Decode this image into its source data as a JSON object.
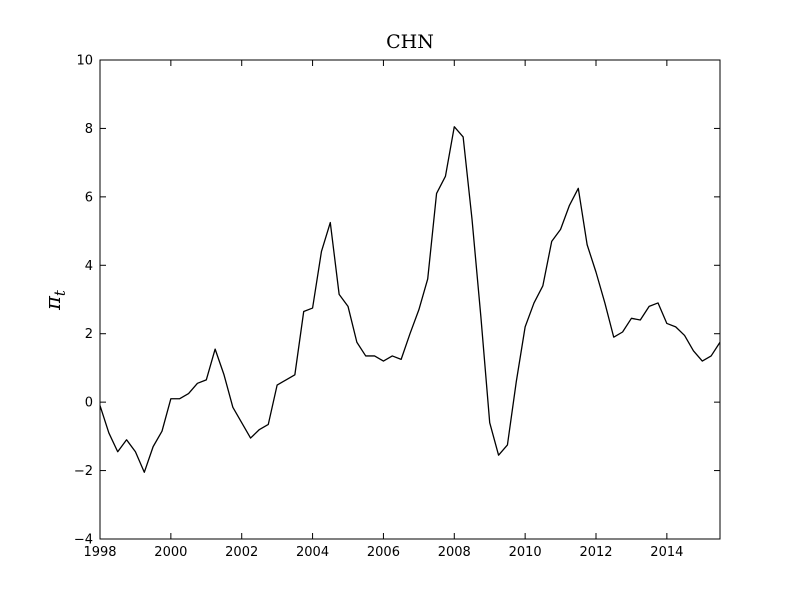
{
  "chart_data": {
    "type": "line",
    "title": "CHN",
    "xlabel": "",
    "ylabel": "π",
    "ylabel_subscript": "t",
    "xlim": [
      1998,
      2015.5
    ],
    "ylim": [
      -4,
      10
    ],
    "xticks": [
      "1998",
      "2000",
      "2002",
      "2004",
      "2006",
      "2008",
      "2010",
      "2012",
      "2014"
    ],
    "yticks": [
      "−4",
      "−2",
      "0",
      "2",
      "4",
      "6",
      "8",
      "10"
    ],
    "grid": false,
    "series_color": "#000000",
    "series": [
      {
        "x": [
          1998.0,
          1998.25,
          1998.5,
          1998.75,
          1999.0,
          1999.25,
          1999.5,
          1999.75,
          2000.0,
          2000.25,
          2000.5,
          2000.75,
          2001.0,
          2001.25,
          2001.5,
          2001.75,
          2002.0,
          2002.25,
          2002.5,
          2002.75,
          2003.0,
          2003.25,
          2003.5,
          2003.75,
          2004.0,
          2004.25,
          2004.5,
          2004.75,
          2005.0,
          2005.25,
          2005.5,
          2005.75,
          2006.0,
          2006.25,
          2006.5,
          2006.75,
          2007.0,
          2007.25,
          2007.5,
          2007.75,
          2008.0,
          2008.25,
          2008.5,
          2008.75,
          2009.0,
          2009.25,
          2009.5,
          2009.75,
          2010.0,
          2010.25,
          2010.5,
          2010.75,
          2011.0,
          2011.25,
          2011.5,
          2011.75,
          2012.0,
          2012.25,
          2012.5,
          2012.75,
          2013.0,
          2013.25,
          2013.5,
          2013.75,
          2014.0,
          2014.25,
          2014.5,
          2014.75,
          2015.0,
          2015.25,
          2015.5
        ],
        "values": [
          -0.1,
          -0.9,
          -1.45,
          -1.1,
          -1.45,
          -2.05,
          -1.3,
          -0.85,
          0.1,
          0.1,
          0.25,
          0.55,
          0.65,
          1.55,
          0.8,
          -0.15,
          -0.6,
          -1.05,
          -0.8,
          -0.65,
          0.5,
          0.65,
          0.8,
          2.65,
          2.75,
          4.4,
          5.25,
          3.15,
          2.8,
          1.75,
          1.35,
          1.35,
          1.2,
          1.35,
          1.25,
          2.0,
          2.7,
          3.6,
          6.1,
          6.6,
          8.05,
          7.75,
          5.35,
          2.5,
          -0.6,
          -1.55,
          -1.25,
          0.6,
          2.2,
          2.9,
          3.4,
          4.7,
          5.05,
          5.75,
          6.25,
          4.6,
          3.8,
          2.9,
          1.9,
          2.05,
          2.45,
          2.4,
          2.8,
          2.9,
          2.3,
          2.2,
          1.95,
          1.5,
          1.2,
          1.35,
          1.75
        ]
      }
    ]
  }
}
